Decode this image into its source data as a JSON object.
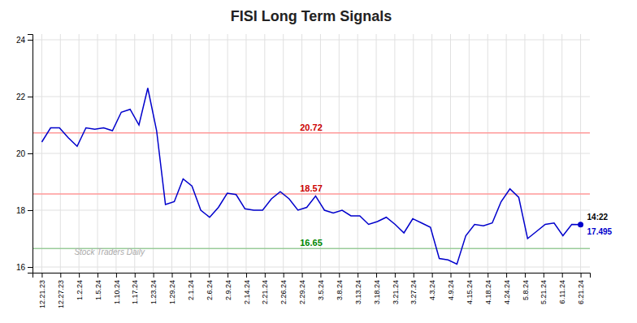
{
  "chart_data": {
    "type": "line",
    "title": "FISI Long Term Signals",
    "values": [
      20.4,
      20.9,
      20.9,
      20.55,
      20.25,
      20.9,
      20.85,
      20.9,
      20.8,
      21.45,
      21.55,
      21.0,
      22.3,
      20.8,
      18.2,
      18.3,
      19.1,
      18.85,
      18.0,
      17.75,
      18.1,
      18.6,
      18.55,
      18.05,
      18.0,
      18.0,
      18.4,
      18.65,
      18.4,
      18.0,
      18.1,
      18.5,
      18.0,
      17.9,
      18.0,
      17.8,
      17.8,
      17.5,
      17.6,
      17.75,
      17.5,
      17.2,
      17.7,
      17.55,
      17.4,
      16.3,
      16.25,
      16.1,
      17.1,
      17.5,
      17.45,
      17.55,
      18.3,
      18.75,
      18.45,
      17.0,
      17.25,
      17.5,
      17.55,
      17.1,
      17.5,
      17.495
    ],
    "color": "#0000cc",
    "marker": "endpoint",
    "xlim": [
      -0.5,
      29.5
    ],
    "xticks": [
      {
        "value": 0,
        "label": "12.21.23"
      },
      {
        "value": 1,
        "label": "12.27.23"
      },
      {
        "value": 2,
        "label": "1.2.24"
      },
      {
        "value": 3,
        "label": "1.5.24"
      },
      {
        "value": 4,
        "label": "1.10.24"
      },
      {
        "value": 5,
        "label": "1.17.24"
      },
      {
        "value": 6,
        "label": "1.23.24"
      },
      {
        "value": 7,
        "label": "1.29.24"
      },
      {
        "value": 8,
        "label": "2.1.24"
      },
      {
        "value": 9,
        "label": "2.6.24"
      },
      {
        "value": 10,
        "label": "2.9.24"
      },
      {
        "value": 11,
        "label": "2.14.24"
      },
      {
        "value": 12,
        "label": "2.21.24"
      },
      {
        "value": 13,
        "label": "2.26.24"
      },
      {
        "value": 14,
        "label": "2.29.24"
      },
      {
        "value": 15,
        "label": "3.5.24"
      },
      {
        "value": 16,
        "label": "3.8.24"
      },
      {
        "value": 17,
        "label": "3.13.24"
      },
      {
        "value": 18,
        "label": "3.18.24"
      },
      {
        "value": 19,
        "label": "3.21.24"
      },
      {
        "value": 20,
        "label": "3.27.24"
      },
      {
        "value": 21,
        "label": "4.3.24"
      },
      {
        "value": 22,
        "label": "4.9.24"
      },
      {
        "value": 23,
        "label": "4.15.24"
      },
      {
        "value": 24,
        "label": "4.18.24"
      },
      {
        "value": 25,
        "label": "4.24.24"
      },
      {
        "value": 26,
        "label": "5.8.24"
      },
      {
        "value": 27,
        "label": "5.21.24"
      },
      {
        "value": 28,
        "label": "6.11.24"
      },
      {
        "value": 29,
        "label": "6.21.24"
      }
    ],
    "ylim": [
      15.8,
      24.2
    ],
    "yticks": [
      16,
      18,
      20,
      22,
      24
    ],
    "grid": true,
    "reference_lines": [
      {
        "value": 20.72,
        "color": "#ff9999",
        "text_color": "#cc0000"
      },
      {
        "value": 18.57,
        "color": "#ff9999",
        "text_color": "#cc0000"
      },
      {
        "value": 16.65,
        "color": "#99cc99",
        "text_color": "#008800"
      }
    ],
    "annotations": [
      {
        "text": "14:22",
        "color": "#000000",
        "position": "end-above"
      },
      {
        "text": "17.495",
        "color": "#0000cc",
        "position": "end-below"
      },
      {
        "text": "Stock Traders Daily",
        "color": "#aaaaaa",
        "position": "watermark"
      }
    ]
  }
}
